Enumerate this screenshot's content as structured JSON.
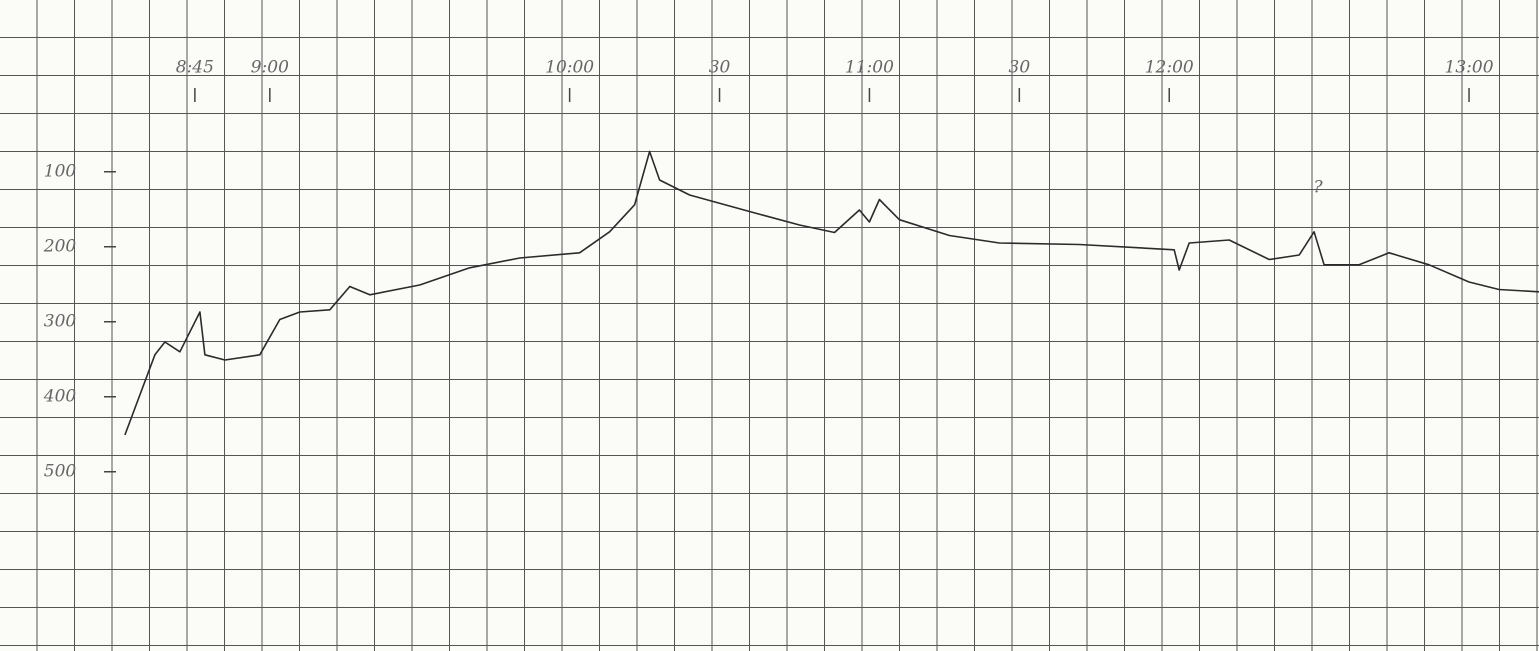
{
  "chart_data": {
    "type": "line",
    "x": [
      511,
      517,
      519,
      522,
      526,
      527,
      531,
      538,
      542,
      546,
      552,
      556,
      560,
      570,
      580,
      590,
      602,
      608,
      613,
      616,
      618,
      624,
      636,
      646,
      653,
      658,
      660,
      662,
      666,
      676,
      686,
      702,
      721,
      722,
      724,
      732,
      740,
      746,
      749,
      751,
      758,
      764,
      772,
      780,
      786,
      794
    ],
    "values": [
      451,
      344,
      327,
      340,
      287,
      344,
      351,
      344,
      297,
      287,
      284,
      253,
      264,
      251,
      228,
      215,
      208,
      180,
      144,
      73,
      111,
      131,
      153,
      171,
      181,
      151,
      167,
      137,
      164,
      185,
      195,
      197,
      204,
      231,
      195,
      191,
      217,
      211,
      180,
      224,
      224,
      208,
      224,
      247,
      257,
      260
    ],
    "color": "#2b2b2b",
    "xlim": [
      486,
      794
    ],
    "ylim": [
      739,
      -129
    ],
    "xticks": [
      {
        "value": 525,
        "label": "8:45"
      },
      {
        "value": 540,
        "label": "9:00"
      },
      {
        "value": 600,
        "label": "10:00"
      },
      {
        "value": 630,
        "label": "30"
      },
      {
        "value": 660,
        "label": "11:00"
      },
      {
        "value": 690,
        "label": "30"
      },
      {
        "value": 720,
        "label": "12:00"
      },
      {
        "value": 780,
        "label": "13:00"
      }
    ],
    "yticks": [
      100,
      200,
      300,
      400,
      500
    ],
    "annotations": [
      "?"
    ]
  }
}
